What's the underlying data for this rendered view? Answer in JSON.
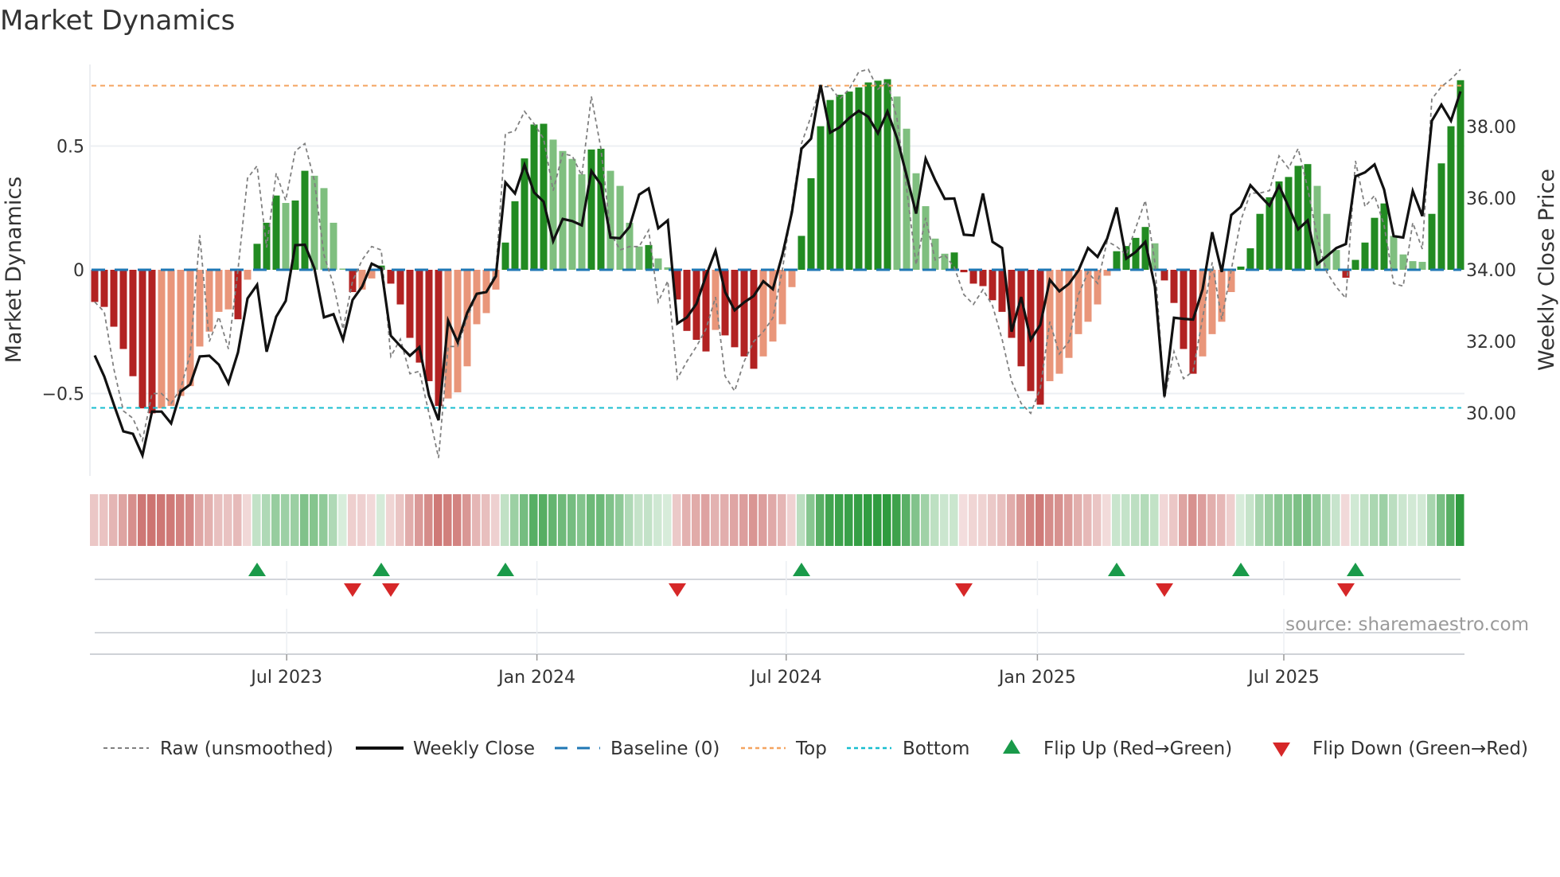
{
  "title": "Market Dynamics",
  "source": "source: sharemaestro.com",
  "colors": {
    "strong_green": "#228b22",
    "weak_green": "#7fbf7f",
    "strong_red": "#b22222",
    "weak_red": "#e9967a",
    "heat_green": "#2e9b3e",
    "heat_red": "#c0504d",
    "raw": "#808080",
    "close": "#111111",
    "baseline": "#1f77b4",
    "top": "#f4a460",
    "bottom": "#17becf",
    "flip_up": "#1a9a4a",
    "flip_down": "#d62728",
    "grid": "#eceff3"
  },
  "legend": {
    "raw": "Raw (unsmoothed)",
    "close": "Weekly Close",
    "baseline": "Baseline (0)",
    "top": "Top",
    "bottom": "Bottom",
    "flip_up": "Flip Up (Red→Green)",
    "flip_down": "Flip Down (Green→Red)"
  },
  "chart_data": {
    "type": "bar",
    "title": "Market Dynamics",
    "ylabel": "Market Dynamics",
    "y2label": "Weekly Close Price",
    "ylim": [
      -0.833,
      0.83
    ],
    "y2lim": [
      28.24,
      39.73
    ],
    "yticks": [
      {
        "v": 0.5,
        "label": "0.5"
      },
      {
        "v": 0,
        "label": "0"
      },
      {
        "v": -0.5,
        "label": "−0.5"
      }
    ],
    "y2ticks": [
      {
        "v": 30,
        "label": "30.00"
      },
      {
        "v": 32,
        "label": "32.00"
      },
      {
        "v": 34,
        "label": "34.00"
      },
      {
        "v": 36,
        "label": "36.00"
      },
      {
        "v": 38,
        "label": "38.00"
      }
    ],
    "xticks": [
      {
        "index": 20.1,
        "label": "Jul 2023"
      },
      {
        "index": 46.3,
        "label": "Jan 2024"
      },
      {
        "index": 72.4,
        "label": "Jul 2024"
      },
      {
        "index": 98.7,
        "label": "Jan 2025"
      },
      {
        "index": 124.5,
        "label": "Jul 2025"
      }
    ],
    "top_level": 0.744,
    "bottom_level": -0.558,
    "baseline": 0,
    "dynamics": [
      -0.13,
      -0.15,
      -0.23,
      -0.32,
      -0.43,
      -0.56,
      -0.58,
      -0.56,
      -0.55,
      -0.51,
      -0.47,
      -0.31,
      -0.25,
      -0.17,
      -0.16,
      -0.2,
      -0.04,
      0.105,
      0.19,
      0.3,
      0.27,
      0.28,
      0.4,
      0.38,
      0.33,
      0.19,
      0.005,
      -0.09,
      -0.08,
      -0.035,
      0.017,
      -0.056,
      -0.14,
      -0.275,
      -0.375,
      -0.45,
      -0.55,
      -0.52,
      -0.495,
      -0.39,
      -0.22,
      -0.175,
      -0.08,
      0.11,
      0.277,
      0.45,
      0.587,
      0.59,
      0.526,
      0.48,
      0.448,
      0.386,
      0.486,
      0.489,
      0.4,
      0.339,
      0.19,
      0.094,
      0.1,
      0.046,
      0.01,
      -0.12,
      -0.247,
      -0.283,
      -0.33,
      -0.243,
      -0.265,
      -0.313,
      -0.35,
      -0.4,
      -0.35,
      -0.29,
      -0.22,
      -0.07,
      0.137,
      0.37,
      0.58,
      0.686,
      0.707,
      0.72,
      0.737,
      0.757,
      0.764,
      0.77,
      0.7,
      0.57,
      0.39,
      0.257,
      0.126,
      0.065,
      0.07,
      -0.01,
      -0.056,
      -0.066,
      -0.123,
      -0.17,
      -0.275,
      -0.39,
      -0.49,
      -0.545,
      -0.45,
      -0.42,
      -0.356,
      -0.26,
      -0.21,
      -0.14,
      -0.024,
      0.075,
      0.096,
      0.129,
      0.173,
      0.107,
      -0.043,
      -0.134,
      -0.32,
      -0.42,
      -0.35,
      -0.26,
      -0.21,
      -0.09,
      0.013,
      0.087,
      0.226,
      0.293,
      0.357,
      0.375,
      0.42,
      0.427,
      0.339,
      0.226,
      0.08,
      -0.032,
      0.04,
      0.11,
      0.21,
      0.268,
      0.137,
      0.062,
      0.035,
      0.032,
      0.226,
      0.43,
      0.58,
      0.766
    ],
    "raw": [
      -0.13,
      -0.17,
      -0.4,
      -0.57,
      -0.6,
      -0.69,
      -0.5,
      -0.5,
      -0.54,
      -0.48,
      -0.34,
      0.14,
      -0.29,
      -0.19,
      -0.32,
      0.0,
      0.37,
      0.42,
      0.09,
      0.39,
      0.28,
      0.48,
      0.51,
      0.36,
      0.06,
      -0.06,
      -0.24,
      -0.045,
      0.04,
      0.094,
      0.08,
      -0.35,
      -0.28,
      -0.42,
      -0.41,
      -0.58,
      -0.76,
      -0.31,
      -0.31,
      -0.195,
      -0.1,
      -0.09,
      -0.01,
      0.55,
      0.56,
      0.64,
      0.59,
      0.53,
      0.32,
      0.47,
      0.46,
      0.38,
      0.7,
      0.49,
      0.15,
      0.08,
      0.094,
      0.094,
      0.16,
      -0.13,
      -0.045,
      -0.44,
      -0.37,
      -0.31,
      -0.24,
      -0.11,
      -0.43,
      -0.49,
      -0.37,
      -0.29,
      -0.25,
      -0.195,
      0.0,
      0.255,
      0.51,
      0.62,
      0.74,
      0.74,
      0.69,
      0.73,
      0.8,
      0.81,
      0.73,
      0.76,
      0.61,
      0.33,
      0.02,
      0.21,
      0.04,
      0.06,
      0.01,
      -0.1,
      -0.14,
      -0.08,
      -0.145,
      -0.28,
      -0.45,
      -0.54,
      -0.58,
      -0.48,
      -0.21,
      -0.34,
      -0.29,
      -0.1,
      -0.01,
      -0.055,
      0.115,
      0.094,
      0.06,
      0.17,
      0.28,
      0.03,
      -0.52,
      -0.33,
      -0.44,
      -0.41,
      -0.195,
      0.03,
      -0.2,
      0.0,
      0.2,
      0.31,
      0.31,
      0.32,
      0.46,
      0.41,
      0.49,
      0.33,
      0.13,
      -0.01,
      -0.07,
      -0.115,
      0.44,
      0.255,
      0.3,
      0.18,
      -0.056,
      -0.066,
      0.19,
      0.084,
      0.69,
      0.74,
      0.77,
      0.81
    ],
    "close": [
      31.61,
      31.02,
      30.24,
      29.49,
      29.42,
      28.82,
      30.04,
      30.04,
      29.71,
      30.6,
      30.8,
      31.58,
      31.6,
      31.35,
      30.83,
      31.69,
      33.2,
      33.58,
      31.71,
      32.69,
      33.13,
      34.69,
      34.7,
      34.04,
      32.67,
      32.76,
      32.05,
      33.16,
      33.53,
      34.17,
      34.04,
      32.16,
      31.87,
      31.6,
      31.84,
      30.49,
      29.8,
      32.58,
      31.98,
      32.8,
      33.33,
      33.38,
      33.82,
      36.44,
      36.13,
      36.93,
      36.16,
      35.9,
      34.8,
      35.42,
      35.36,
      35.24,
      36.76,
      36.38,
      34.9,
      34.88,
      35.2,
      36.1,
      36.27,
      35.16,
      35.38,
      32.5,
      32.67,
      33.05,
      33.83,
      34.53,
      33.38,
      32.87,
      33.09,
      33.27,
      33.68,
      33.46,
      34.42,
      35.61,
      37.38,
      37.66,
      39.16,
      37.83,
      37.98,
      38.24,
      38.44,
      38.27,
      37.81,
      38.42,
      37.68,
      36.64,
      35.57,
      37.1,
      36.5,
      35.98,
      35.99,
      34.98,
      34.96,
      36.13,
      34.78,
      34.61,
      32.27,
      33.24,
      32.05,
      32.46,
      33.72,
      33.4,
      33.61,
      33.98,
      34.61,
      34.36,
      34.87,
      35.74,
      34.31,
      34.5,
      34.78,
      33.53,
      30.46,
      32.66,
      32.63,
      32.61,
      33.46,
      35.05,
      33.94,
      35.53,
      35.76,
      36.36,
      36.07,
      35.79,
      36.35,
      35.76,
      35.13,
      35.38,
      34.16,
      34.38,
      34.61,
      34.72,
      36.61,
      36.72,
      36.94,
      36.24,
      34.94,
      34.9,
      36.2,
      35.5,
      38.16,
      38.61,
      38.16,
      38.98
    ],
    "flips_up": [
      17,
      30,
      43,
      74,
      107,
      120,
      132
    ],
    "flips_down": [
      27,
      31,
      61,
      91,
      112,
      131
    ],
    "legend_position": "bottom"
  }
}
